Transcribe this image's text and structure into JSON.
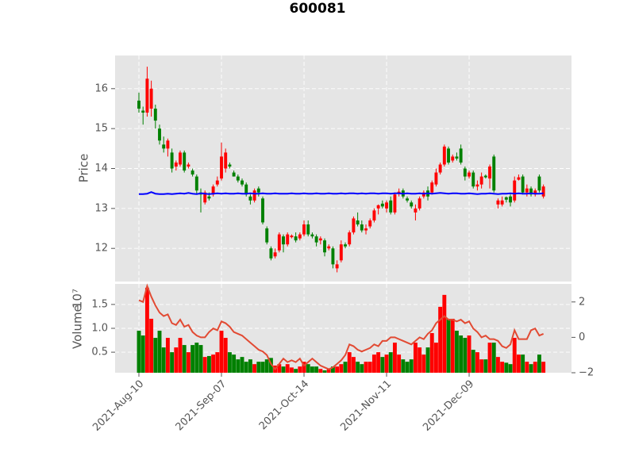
{
  "chart_data": {
    "type": "candlestick",
    "title": "600081",
    "ylabel": "Price",
    "ylim": [
      11.17,
      16.83
    ],
    "yticks": [
      12,
      13,
      14,
      15,
      16
    ],
    "xlim": [
      -5.77,
      104.8
    ],
    "xticks": [
      {
        "value": 0,
        "label": "2021-Aug-10"
      },
      {
        "value": 20,
        "label": "2021-Sep-07"
      },
      {
        "value": 40,
        "label": "2021-Oct-14"
      },
      {
        "value": 60,
        "label": "2021-Nov-11"
      },
      {
        "value": 80,
        "label": "2021-Dec-09"
      }
    ],
    "grid": true,
    "up_color": "#ff0000",
    "down_color": "#008000",
    "ohlc": [
      [
        15.7,
        15.9,
        15.4,
        15.5
      ],
      [
        15.45,
        15.55,
        15.1,
        15.4
      ],
      [
        15.4,
        16.55,
        15.3,
        16.25
      ],
      [
        15.5,
        16.2,
        15.3,
        16.0
      ],
      [
        15.5,
        15.6,
        15.0,
        15.2
      ],
      [
        15.0,
        15.1,
        14.6,
        14.7
      ],
      [
        14.6,
        14.8,
        14.4,
        14.5
      ],
      [
        14.5,
        14.75,
        14.3,
        14.7
      ],
      [
        14.4,
        14.5,
        13.9,
        14.0
      ],
      [
        14.05,
        14.2,
        13.95,
        14.15
      ],
      [
        14.1,
        14.45,
        14.05,
        14.4
      ],
      [
        14.4,
        14.45,
        13.9,
        13.95
      ],
      [
        14.05,
        14.15,
        14.0,
        14.1
      ],
      [
        13.95,
        14.0,
        13.8,
        13.85
      ],
      [
        13.8,
        13.85,
        13.35,
        13.45
      ],
      [
        13.4,
        13.5,
        12.9,
        13.35
      ],
      [
        13.15,
        13.45,
        13.1,
        13.4
      ],
      [
        13.3,
        13.4,
        13.2,
        13.25
      ],
      [
        13.35,
        13.6,
        13.3,
        13.55
      ],
      [
        13.6,
        13.8,
        13.55,
        13.7
      ],
      [
        13.75,
        14.65,
        13.7,
        14.3
      ],
      [
        14.0,
        14.5,
        13.9,
        14.4
      ],
      [
        14.1,
        14.15,
        14.0,
        14.05
      ],
      [
        13.9,
        13.95,
        13.8,
        13.8
      ],
      [
        13.8,
        13.85,
        13.65,
        13.7
      ],
      [
        13.7,
        13.75,
        13.55,
        13.6
      ],
      [
        13.6,
        13.65,
        13.3,
        13.35
      ],
      [
        13.3,
        13.35,
        13.1,
        13.2
      ],
      [
        13.2,
        13.5,
        13.15,
        13.45
      ],
      [
        13.5,
        13.55,
        13.3,
        13.4
      ],
      [
        13.25,
        13.3,
        12.6,
        12.65
      ],
      [
        12.5,
        12.55,
        12.1,
        12.15
      ],
      [
        12.0,
        12.05,
        11.7,
        11.75
      ],
      [
        11.8,
        12.0,
        11.75,
        11.9
      ],
      [
        11.95,
        12.4,
        11.9,
        12.35
      ],
      [
        12.3,
        12.35,
        11.9,
        12.1
      ],
      [
        12.1,
        12.4,
        12.05,
        12.35
      ],
      [
        12.28,
        12.35,
        12.25,
        12.32
      ],
      [
        12.3,
        12.4,
        12.15,
        12.2
      ],
      [
        12.25,
        12.4,
        12.2,
        12.35
      ],
      [
        12.35,
        12.7,
        12.3,
        12.6
      ],
      [
        12.6,
        12.7,
        12.3,
        12.35
      ],
      [
        12.35,
        12.4,
        12.25,
        12.3
      ],
      [
        12.3,
        12.35,
        12.05,
        12.15
      ],
      [
        12.2,
        12.3,
        12.1,
        12.25
      ],
      [
        12.2,
        12.25,
        11.8,
        11.9
      ],
      [
        12.0,
        12.1,
        11.95,
        12.05
      ],
      [
        12.0,
        12.05,
        11.5,
        11.6
      ],
      [
        11.5,
        11.7,
        11.4,
        11.6
      ],
      [
        11.7,
        12.2,
        11.65,
        12.1
      ],
      [
        12.1,
        12.15,
        12.0,
        12.05
      ],
      [
        12.1,
        12.45,
        12.05,
        12.4
      ],
      [
        12.4,
        12.8,
        12.35,
        12.75
      ],
      [
        12.7,
        12.9,
        12.55,
        12.6
      ],
      [
        12.6,
        12.7,
        12.4,
        12.45
      ],
      [
        12.45,
        12.6,
        12.35,
        12.5
      ],
      [
        12.55,
        12.75,
        12.5,
        12.7
      ],
      [
        12.7,
        13.0,
        12.65,
        12.95
      ],
      [
        13.0,
        13.1,
        12.85,
        13.08
      ],
      [
        13.12,
        13.2,
        13.0,
        13.05
      ],
      [
        13.0,
        13.2,
        12.9,
        13.15
      ],
      [
        13.2,
        13.3,
        12.85,
        12.9
      ],
      [
        12.9,
        13.4,
        12.85,
        13.35
      ],
      [
        13.38,
        13.5,
        13.3,
        13.42
      ],
      [
        13.45,
        13.5,
        13.25,
        13.3
      ],
      [
        13.25,
        13.3,
        13.15,
        13.2
      ],
      [
        13.15,
        13.2,
        13.0,
        13.05
      ],
      [
        12.9,
        13.1,
        12.7,
        13.0
      ],
      [
        13.0,
        13.3,
        12.95,
        13.25
      ],
      [
        13.3,
        13.45,
        13.25,
        13.4
      ],
      [
        13.45,
        13.55,
        13.2,
        13.3
      ],
      [
        13.4,
        13.7,
        13.35,
        13.65
      ],
      [
        13.6,
        14.0,
        13.55,
        13.9
      ],
      [
        13.9,
        14.15,
        13.85,
        14.1
      ],
      [
        14.1,
        14.6,
        14.05,
        14.55
      ],
      [
        14.5,
        14.55,
        14.1,
        14.15
      ],
      [
        14.2,
        14.35,
        14.15,
        14.3
      ],
      [
        14.3,
        14.4,
        14.2,
        14.25
      ],
      [
        14.5,
        14.6,
        14.1,
        14.15
      ],
      [
        14.0,
        14.05,
        13.7,
        13.8
      ],
      [
        13.8,
        13.95,
        13.75,
        13.9
      ],
      [
        13.9,
        13.95,
        13.5,
        13.55
      ],
      [
        13.55,
        13.7,
        13.45,
        13.6
      ],
      [
        13.6,
        13.9,
        13.5,
        13.8
      ],
      [
        13.82,
        13.85,
        13.75,
        13.78
      ],
      [
        13.75,
        14.1,
        13.5,
        14.05
      ],
      [
        14.3,
        14.35,
        13.4,
        13.45
      ],
      [
        13.1,
        13.25,
        13.0,
        13.2
      ],
      [
        13.1,
        13.3,
        13.05,
        13.2
      ],
      [
        13.28,
        13.3,
        13.15,
        13.22
      ],
      [
        13.3,
        13.35,
        13.05,
        13.15
      ],
      [
        13.2,
        13.8,
        13.15,
        13.7
      ],
      [
        13.72,
        13.85,
        13.7,
        13.78
      ],
      [
        13.8,
        13.85,
        13.35,
        13.4
      ],
      [
        13.4,
        13.6,
        13.3,
        13.5
      ],
      [
        13.5,
        13.55,
        13.3,
        13.35
      ],
      [
        13.35,
        13.5,
        13.3,
        13.45
      ],
      [
        13.8,
        13.85,
        13.4,
        13.45
      ],
      [
        13.3,
        13.6,
        13.25,
        13.55
      ]
    ],
    "line": {
      "color": "#0000ff",
      "values": [
        13.36,
        13.36,
        13.37,
        13.41,
        13.37,
        13.36,
        13.36,
        13.37,
        13.36,
        13.37,
        13.38,
        13.37,
        13.39,
        13.37,
        13.36,
        13.38,
        13.37,
        13.36,
        13.37,
        13.38,
        13.37,
        13.38,
        13.37,
        13.37,
        13.38,
        13.37,
        13.37,
        13.38,
        13.37,
        13.37,
        13.38,
        13.37,
        13.37,
        13.38,
        13.37,
        13.37,
        13.37,
        13.38,
        13.37,
        13.37,
        13.38,
        13.37,
        13.37,
        13.38,
        13.37,
        13.37,
        13.38,
        13.37,
        13.37,
        13.38,
        13.37,
        13.38,
        13.38,
        13.37,
        13.38,
        13.37,
        13.38,
        13.38,
        13.37,
        13.38,
        13.38,
        13.37,
        13.38,
        13.38,
        13.37,
        13.38,
        13.37,
        13.37,
        13.38,
        13.37,
        13.38,
        13.37,
        13.38,
        13.39,
        13.38,
        13.37,
        13.38,
        13.38,
        13.37,
        13.37,
        13.38,
        13.37,
        13.36,
        13.37,
        13.37,
        13.38,
        13.37,
        13.36,
        13.37,
        13.37,
        13.38,
        13.37,
        13.38,
        13.37,
        13.37,
        13.38,
        13.37,
        13.37,
        13.38
      ]
    },
    "volume": {
      "ylabel": "Volume",
      "offset_text": "10⁷",
      "ylim": [
        0.07,
        1.93
      ],
      "yticks": [
        0.5,
        {
          "value": 1.0,
          "label": "1.0"
        },
        1.5
      ],
      "y2lim": [
        -2,
        3.02
      ],
      "y2ticks": [
        {
          "value": -2,
          "label": "−2"
        },
        0,
        2
      ],
      "values": [
        0.95,
        0.85,
        1.85,
        1.2,
        0.8,
        0.95,
        0.6,
        0.8,
        0.5,
        0.6,
        0.8,
        0.65,
        0.5,
        0.65,
        0.7,
        0.65,
        0.4,
        0.42,
        0.45,
        0.5,
        0.95,
        0.8,
        0.5,
        0.45,
        0.35,
        0.4,
        0.3,
        0.35,
        0.25,
        0.3,
        0.3,
        0.35,
        0.38,
        0.22,
        0.25,
        0.2,
        0.25,
        0.18,
        0.15,
        0.2,
        0.3,
        0.25,
        0.2,
        0.2,
        0.15,
        0.12,
        0.15,
        0.2,
        0.2,
        0.25,
        0.3,
        0.5,
        0.4,
        0.3,
        0.25,
        0.3,
        0.3,
        0.45,
        0.5,
        0.4,
        0.45,
        0.5,
        0.7,
        0.45,
        0.35,
        0.3,
        0.35,
        0.7,
        0.6,
        0.45,
        0.6,
        0.9,
        0.7,
        1.45,
        1.7,
        1.2,
        1.2,
        0.95,
        0.85,
        0.8,
        0.85,
        0.55,
        0.5,
        0.35,
        0.35,
        0.7,
        0.7,
        0.4,
        0.3,
        0.28,
        0.25,
        0.8,
        0.45,
        0.45,
        0.3,
        0.25,
        0.3,
        0.45,
        0.3
      ],
      "line": {
        "color": "#e24a33",
        "values": [
          2.1,
          2.0,
          2.9,
          2.3,
          1.8,
          1.4,
          1.2,
          1.3,
          0.8,
          0.7,
          1.0,
          0.6,
          0.7,
          0.3,
          0.1,
          0.0,
          0.0,
          0.3,
          0.5,
          0.4,
          0.9,
          0.8,
          0.6,
          0.3,
          0.2,
          0.1,
          -0.1,
          -0.3,
          -0.5,
          -0.7,
          -0.8,
          -1.0,
          -1.5,
          -1.8,
          -1.5,
          -1.2,
          -1.4,
          -1.3,
          -1.4,
          -1.2,
          -1.6,
          -1.4,
          -1.2,
          -1.4,
          -1.6,
          -1.7,
          -1.8,
          -1.7,
          -1.5,
          -1.3,
          -1.0,
          -0.4,
          -0.5,
          -0.7,
          -0.8,
          -0.7,
          -0.6,
          -0.4,
          -0.5,
          -0.2,
          -0.2,
          0.0,
          0.0,
          -0.1,
          -0.2,
          -0.3,
          -0.4,
          -0.2,
          0.0,
          -0.1,
          0.2,
          0.4,
          0.8,
          1.0,
          1.2,
          1.0,
          1.0,
          0.9,
          1.0,
          0.8,
          0.9,
          0.5,
          0.3,
          0.0,
          0.1,
          -0.1,
          -0.1,
          -0.2,
          -0.5,
          -0.6,
          -0.4,
          0.4,
          -0.1,
          -0.1,
          -0.1,
          0.4,
          0.5,
          0.1,
          0.2
        ]
      }
    }
  }
}
